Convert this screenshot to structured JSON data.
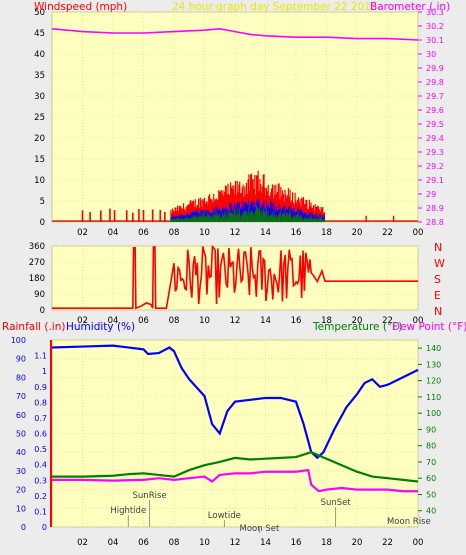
{
  "header": {
    "left_label": "Windspeed (mph)",
    "title": "24 hour graph day   September 22 2016",
    "right_label": "Barometer (.in)"
  },
  "colors": {
    "plot_bg": "#ffffc0",
    "grid": "#e4e48a",
    "wind_gust": "#ff0000",
    "wind_avg": "#0000ff",
    "wind_low": "#008000",
    "barometer": "#ff00ff",
    "direction": "#ff0000",
    "humidity": "#0000ff",
    "temperature": "#008000",
    "dewpoint": "#ff00ff",
    "rain_axis": "#ff0000",
    "moon": "#404040"
  },
  "x_ticks": [
    "02",
    "04",
    "06",
    "08",
    "10",
    "12",
    "14",
    "16",
    "18",
    "20",
    "22",
    "00"
  ],
  "chart_data": [
    {
      "type": "line",
      "name": "wind-barometer",
      "x_range_hours": [
        0,
        24
      ],
      "left_axis": {
        "label": "Windspeed (mph)",
        "range": [
          0,
          50
        ],
        "ticks": [
          0,
          5,
          10,
          15,
          20,
          25,
          30,
          35,
          40,
          45,
          50
        ]
      },
      "right_axis": {
        "label": "Barometer (.in)",
        "range": [
          28.8,
          30.3
        ],
        "ticks": [
          "28.8",
          "28.9",
          "29",
          "29.1",
          "29.2",
          "29.3",
          "29.4",
          "29.5",
          "29.6",
          "29.7",
          "29.8",
          "29.9",
          "30",
          "30.1",
          "30.2",
          "30.3"
        ]
      },
      "series": [
        {
          "name": "Barometer (.in)",
          "axis": "right",
          "points": [
            [
              0,
              30.18
            ],
            [
              2,
              30.16
            ],
            [
              4,
              30.15
            ],
            [
              6,
              30.15
            ],
            [
              8,
              30.16
            ],
            [
              10,
              30.17
            ],
            [
              11,
              30.18
            ],
            [
              12,
              30.16
            ],
            [
              13,
              30.14
            ],
            [
              14,
              30.13
            ],
            [
              16,
              30.12
            ],
            [
              18,
              30.12
            ],
            [
              20,
              30.11
            ],
            [
              22,
              30.11
            ],
            [
              24,
              30.1
            ]
          ]
        }
      ],
      "wind_activity": {
        "start_hour": 7.8,
        "end_hour": 17.9,
        "peak_hour": 13.5,
        "peak_mph": 10
      }
    },
    {
      "type": "scatter",
      "name": "wind-direction",
      "left_axis": {
        "range": [
          0,
          360
        ],
        "ticks": [
          0,
          90,
          180,
          270,
          360
        ]
      },
      "right_axis_labels": [
        "N",
        "W",
        "S",
        "E",
        "N"
      ],
      "baseline_deg": 10,
      "final_deg": 162
    },
    {
      "type": "line",
      "name": "rain-humidity-temperature",
      "left_axis_rain": {
        "label": "Rainfall (.in)",
        "range": [
          0,
          1.2
        ],
        "ticks": [
          "0",
          "0.1",
          "0.2",
          "0.3",
          "0.4",
          "0.5",
          "0.6",
          "0.7",
          "0.8",
          "0.9",
          "1",
          "1.1"
        ]
      },
      "left_axis_humidity": {
        "label": "Humidity (%)",
        "range": [
          0,
          100
        ],
        "ticks": [
          0,
          10,
          20,
          30,
          40,
          50,
          60,
          70,
          80,
          90,
          100
        ]
      },
      "right_axis_temp": {
        "label": "Temperature (°F)",
        "label2": "Dew Point (°F)",
        "range": [
          30,
          145
        ],
        "ticks": [
          40,
          50,
          60,
          70,
          80,
          90,
          100,
          110,
          120,
          130,
          140
        ]
      },
      "series": [
        {
          "name": "Humidity (%)",
          "axis": "humidity",
          "points": [
            [
              0,
              96
            ],
            [
              2,
              96.5
            ],
            [
              4,
              97
            ],
            [
              6,
              95
            ],
            [
              6.3,
              92.5
            ],
            [
              7,
              93
            ],
            [
              7.7,
              96
            ],
            [
              8,
              94
            ],
            [
              8.5,
              85
            ],
            [
              9,
              79
            ],
            [
              10,
              70
            ],
            [
              10.5,
              55
            ],
            [
              11,
              50
            ],
            [
              11.5,
              62
            ],
            [
              12,
              67
            ],
            [
              13,
              68
            ],
            [
              14,
              69
            ],
            [
              15,
              69
            ],
            [
              16,
              67
            ],
            [
              16.5,
              55
            ],
            [
              17,
              40
            ],
            [
              17.4,
              37
            ],
            [
              17.8,
              40
            ],
            [
              18.5,
              52
            ],
            [
              19.3,
              64
            ],
            [
              20,
              71
            ],
            [
              20.5,
              77
            ],
            [
              21,
              79
            ],
            [
              21.5,
              75
            ],
            [
              22,
              76
            ],
            [
              23,
              80
            ],
            [
              24,
              84
            ]
          ]
        },
        {
          "name": "Temperature (°F)",
          "axis": "temp",
          "points": [
            [
              0,
              61
            ],
            [
              2,
              61
            ],
            [
              4,
              61.5
            ],
            [
              5,
              62.5
            ],
            [
              6,
              63
            ],
            [
              7,
              62
            ],
            [
              8,
              61
            ],
            [
              9,
              65
            ],
            [
              10,
              68
            ],
            [
              11,
              70
            ],
            [
              12,
              72.5
            ],
            [
              13,
              71.5
            ],
            [
              14,
              72
            ],
            [
              15,
              72.5
            ],
            [
              16,
              73
            ],
            [
              17,
              76
            ],
            [
              17.5,
              74
            ],
            [
              18,
              72
            ],
            [
              19,
              68
            ],
            [
              20,
              64
            ],
            [
              21,
              61
            ],
            [
              22,
              60
            ],
            [
              24,
              58
            ]
          ]
        },
        {
          "name": "Dew Point (°F)",
          "axis": "temp",
          "points": [
            [
              0,
              59
            ],
            [
              2,
              59
            ],
            [
              4,
              58.5
            ],
            [
              6,
              59
            ],
            [
              7,
              60
            ],
            [
              8,
              59
            ],
            [
              9,
              60
            ],
            [
              10,
              61
            ],
            [
              10.5,
              58
            ],
            [
              11,
              62
            ],
            [
              12,
              63
            ],
            [
              13,
              63
            ],
            [
              14,
              64
            ],
            [
              15,
              64
            ],
            [
              16,
              64
            ],
            [
              16.8,
              65
            ],
            [
              17,
              56
            ],
            [
              17.5,
              52
            ],
            [
              18,
              53
            ],
            [
              19,
              54
            ],
            [
              20,
              53
            ],
            [
              21,
              53
            ],
            [
              22,
              53
            ],
            [
              23,
              52
            ],
            [
              24,
              52
            ]
          ]
        }
      ],
      "events": [
        {
          "label": "Hightide",
          "hour": 5.0
        },
        {
          "label": "SunRise",
          "hour": 6.4
        },
        {
          "label": "Lowtide",
          "hour": 11.3
        },
        {
          "label": "Moon Set",
          "hour": 13.6
        },
        {
          "label": "SunSet",
          "hour": 18.6
        },
        {
          "label": "Moon Rise",
          "hour": 23.4
        }
      ]
    }
  ]
}
